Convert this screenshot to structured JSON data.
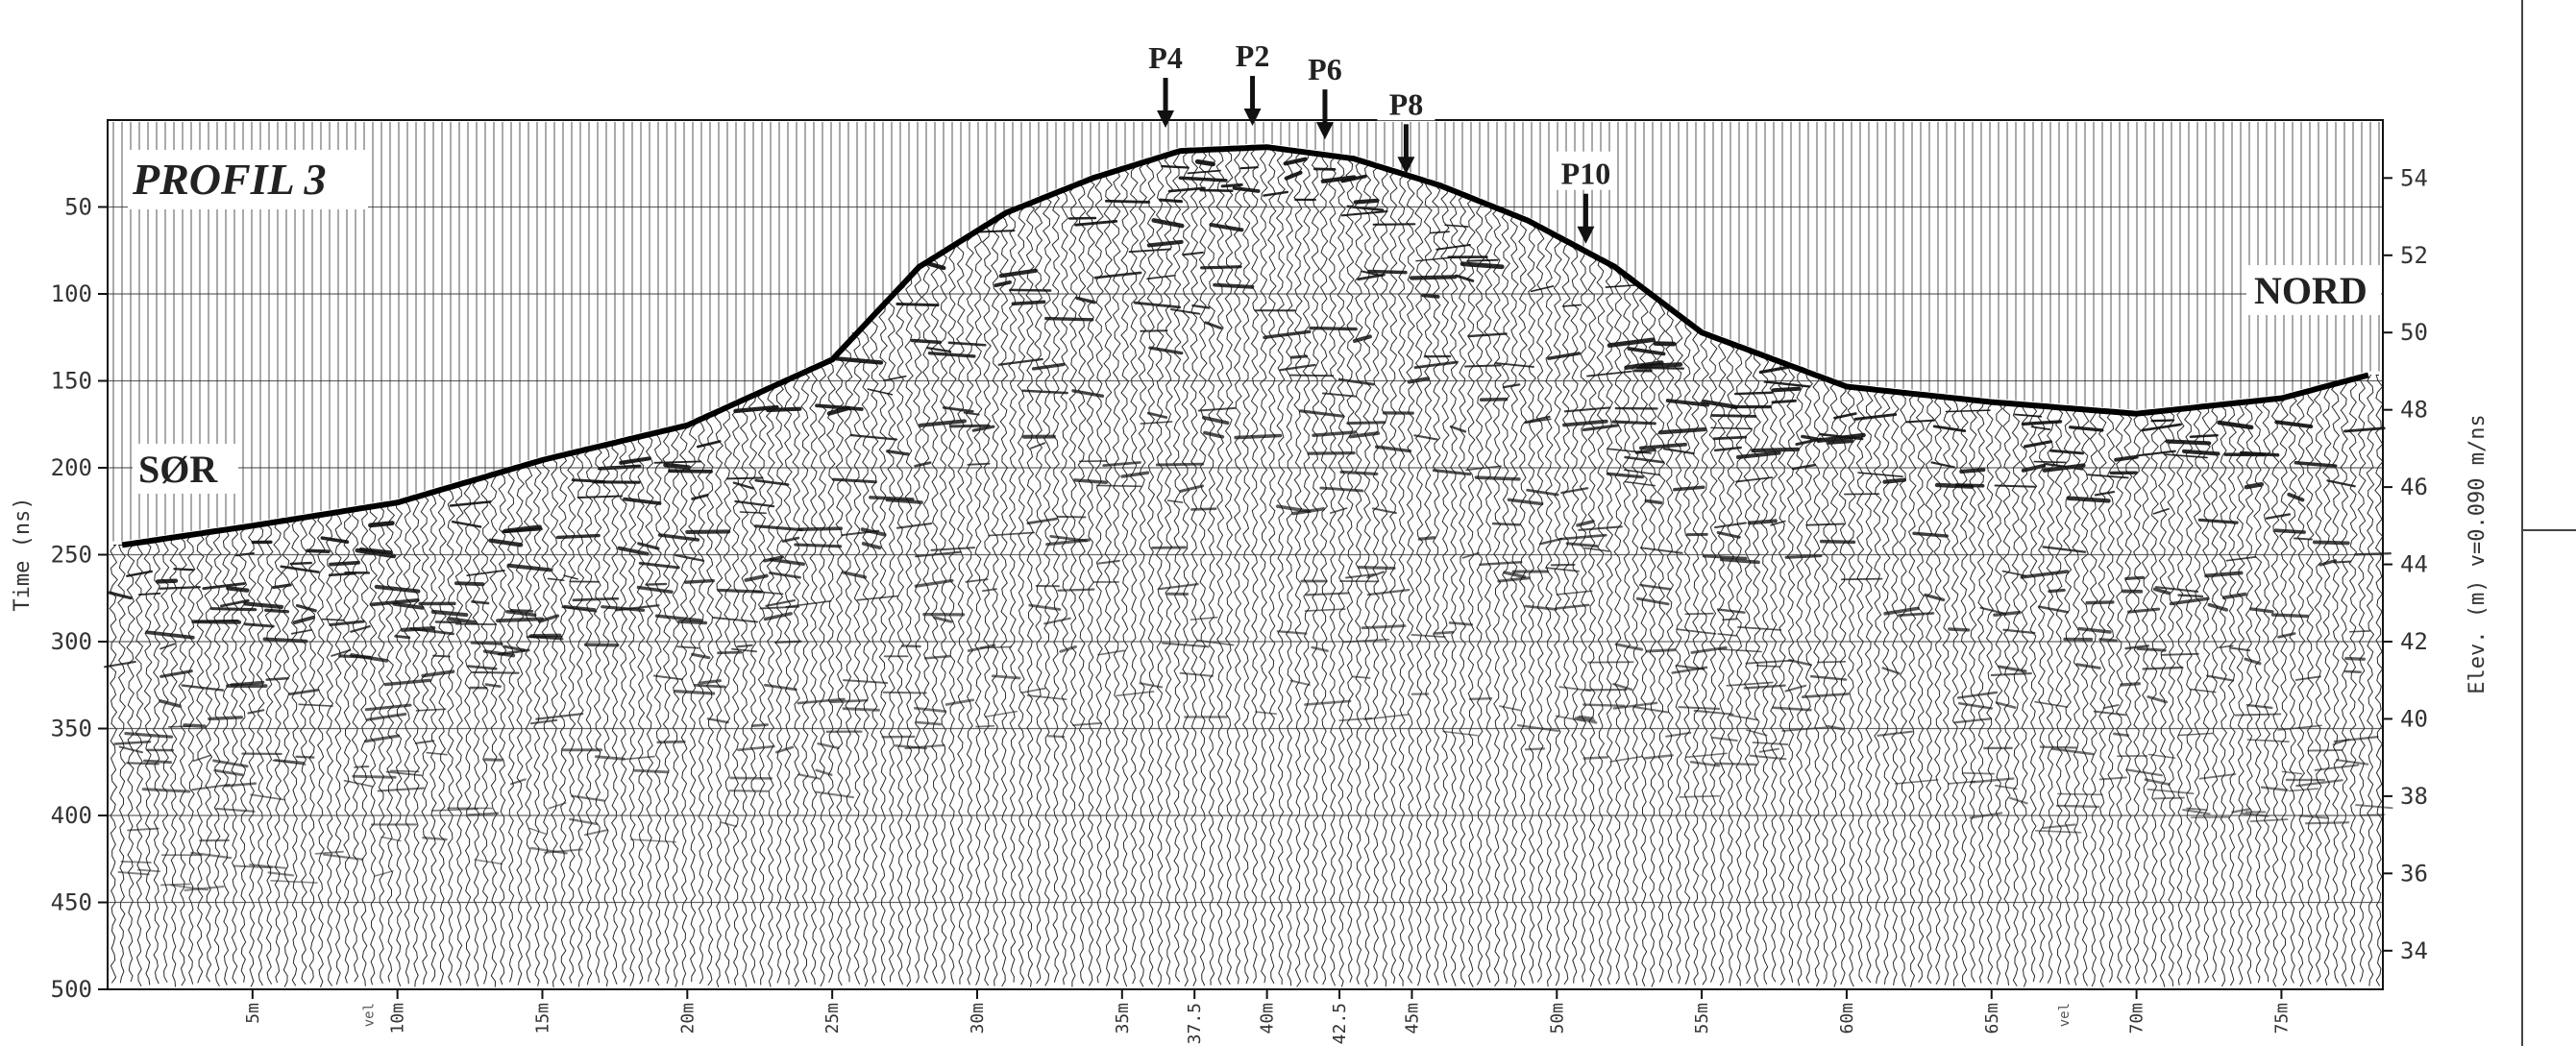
{
  "chart_data": {
    "type": "radargram",
    "title": "PROFIL 3",
    "direction_labels": {
      "left": "SØR",
      "right": "NORD"
    },
    "left_axis": {
      "label": "Time (ns)",
      "ticks": [
        50,
        100,
        150,
        200,
        250,
        300,
        350,
        400,
        450,
        500
      ],
      "range": [
        0,
        500
      ]
    },
    "right_axis": {
      "label": "Elev. (m)  v=0.090 m/ns",
      "ticks": [
        34,
        36,
        38,
        40,
        42,
        44,
        46,
        48,
        50,
        52,
        54
      ],
      "range": [
        33,
        55.5
      ]
    },
    "bottom_axis": {
      "ticks": [
        "5m",
        "10m",
        "15m",
        "20m",
        "25m",
        "30m",
        "35m",
        "37.5",
        "40m",
        "42.5",
        "45m",
        "50m",
        "55m",
        "60m",
        "65m",
        "70m",
        "75m"
      ],
      "tick_values": [
        5,
        10,
        15,
        20,
        25,
        30,
        35,
        37.5,
        40,
        42.5,
        45,
        50,
        55,
        60,
        65,
        70,
        75
      ],
      "small_labels": [
        {
          "text": "vel",
          "x": 9
        },
        {
          "text": "vel",
          "x": 67.5
        }
      ],
      "range": [
        0,
        78.5
      ]
    },
    "markers": [
      {
        "label": "P4",
        "x": 36.5,
        "arrow_tip_elev": 55.3
      },
      {
        "label": "P2",
        "x": 39.5,
        "arrow_tip_elev": 55.35
      },
      {
        "label": "P6",
        "x": 42.0,
        "arrow_tip_elev": 55.0
      },
      {
        "label": "P8",
        "x": 44.8,
        "arrow_tip_elev": 54.1
      },
      {
        "label": "P10",
        "x": 51.0,
        "arrow_tip_elev": 52.3
      }
    ],
    "ground_surface": {
      "x": [
        0.5,
        5,
        10,
        15,
        20,
        25,
        28,
        31,
        34,
        37,
        40,
        43,
        46,
        49,
        52,
        55,
        60,
        65,
        70,
        75,
        78
      ],
      "elevation": [
        44.5,
        45.0,
        45.6,
        46.7,
        47.6,
        49.3,
        51.7,
        53.1,
        54.0,
        54.7,
        54.8,
        54.5,
        53.8,
        52.9,
        51.7,
        50.0,
        48.6,
        48.2,
        47.9,
        48.3,
        48.9
      ]
    }
  }
}
